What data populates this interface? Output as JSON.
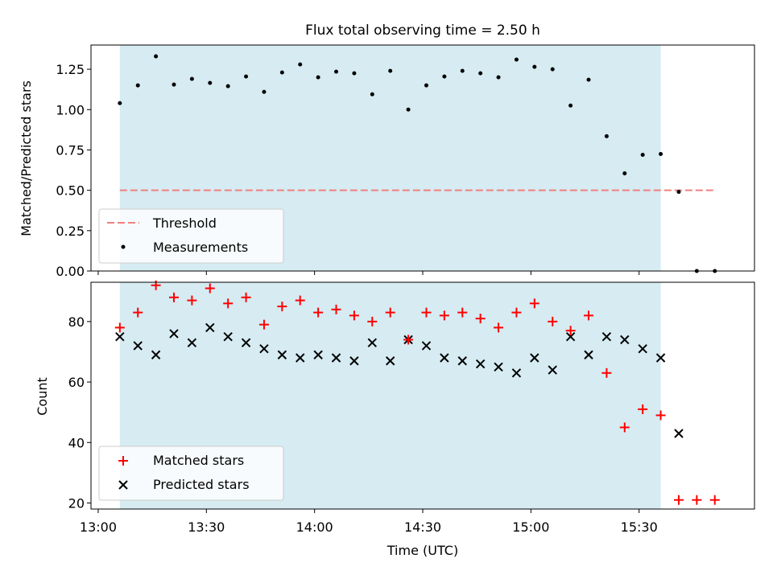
{
  "chart_data": [
    {
      "type": "scatter",
      "title": "Flux total observing time = 2.50 h",
      "xlabel": "",
      "ylabel": "Matched/Predicted stars",
      "ylim": [
        0,
        1.4
      ],
      "yticks": [
        "0.00",
        "0.25",
        "0.50",
        "0.75",
        "1.00",
        "1.25"
      ],
      "legend_position": "lower-left",
      "shaded_span": [
        "13:06",
        "15:36"
      ],
      "threshold": {
        "name": "Threshold",
        "value": 0.5,
        "x_start": "13:06",
        "x_end": "15:51",
        "color": "#f08080",
        "style": "dashed"
      },
      "series": [
        {
          "name": "Measurements",
          "color": "#000000",
          "marker": "dot",
          "x": [
            "13:06",
            "13:11",
            "13:16",
            "13:21",
            "13:26",
            "13:31",
            "13:36",
            "13:41",
            "13:46",
            "13:51",
            "13:56",
            "14:01",
            "14:06",
            "14:11",
            "14:16",
            "14:21",
            "14:26",
            "14:31",
            "14:36",
            "14:41",
            "14:46",
            "14:51",
            "14:56",
            "15:01",
            "15:06",
            "15:11",
            "15:16",
            "15:21",
            "15:26",
            "15:31",
            "15:36",
            "15:41",
            "15:46",
            "15:51"
          ],
          "y": [
            1.04,
            1.15,
            1.33,
            1.155,
            1.19,
            1.165,
            1.145,
            1.205,
            1.11,
            1.23,
            1.28,
            1.2,
            1.235,
            1.225,
            1.095,
            1.24,
            1.0,
            1.15,
            1.205,
            1.24,
            1.225,
            1.2,
            1.31,
            1.265,
            1.25,
            1.025,
            1.185,
            0.835,
            0.605,
            0.72,
            0.725,
            0.49,
            0.0,
            0.0
          ]
        }
      ]
    },
    {
      "type": "scatter",
      "title": "",
      "xlabel": "Time (UTC)",
      "ylabel": "Count",
      "ylim": [
        18,
        93
      ],
      "yticks": [
        "20",
        "40",
        "60",
        "80"
      ],
      "xticks": [
        "13:00",
        "13:30",
        "14:00",
        "14:30",
        "15:00",
        "15:30"
      ],
      "xlim": [
        "12:58",
        "16:02"
      ],
      "legend_position": "lower-left",
      "shaded_span": [
        "13:06",
        "15:36"
      ],
      "series": [
        {
          "name": "Matched stars",
          "color": "#ff0000",
          "marker": "plus",
          "x": [
            "13:06",
            "13:11",
            "13:16",
            "13:21",
            "13:26",
            "13:31",
            "13:36",
            "13:41",
            "13:46",
            "13:51",
            "13:56",
            "14:01",
            "14:06",
            "14:11",
            "14:16",
            "14:21",
            "14:26",
            "14:31",
            "14:36",
            "14:41",
            "14:46",
            "14:51",
            "14:56",
            "15:01",
            "15:06",
            "15:11",
            "15:16",
            "15:21",
            "15:26",
            "15:31",
            "15:36",
            "15:41",
            "15:46",
            "15:51"
          ],
          "y": [
            78,
            83,
            92,
            88,
            87,
            91,
            86,
            88,
            79,
            85,
            87,
            83,
            84,
            82,
            80,
            83,
            74,
            83,
            82,
            83,
            81,
            78,
            83,
            86,
            80,
            77,
            82,
            63,
            45,
            51,
            49,
            21,
            21,
            21
          ]
        },
        {
          "name": "Predicted stars",
          "color": "#000000",
          "marker": "x",
          "x": [
            "13:06",
            "13:11",
            "13:16",
            "13:21",
            "13:26",
            "13:31",
            "13:36",
            "13:41",
            "13:46",
            "13:51",
            "13:56",
            "14:01",
            "14:06",
            "14:11",
            "14:16",
            "14:21",
            "14:26",
            "14:31",
            "14:36",
            "14:41",
            "14:46",
            "14:51",
            "14:56",
            "15:01",
            "15:06",
            "15:11",
            "15:16",
            "15:21",
            "15:26",
            "15:31",
            "15:36",
            "15:41"
          ],
          "y": [
            75,
            72,
            69,
            76,
            73,
            78,
            75,
            73,
            71,
            69,
            68,
            69,
            68,
            67,
            73,
            67,
            74,
            72,
            68,
            67,
            66,
            65,
            63,
            68,
            64,
            75,
            69,
            75,
            74,
            71,
            68,
            43
          ]
        }
      ]
    }
  ],
  "colors": {
    "shade": "#add8e6",
    "threshold": "#f08080",
    "matched": "#ff0000",
    "predicted": "#000000"
  }
}
